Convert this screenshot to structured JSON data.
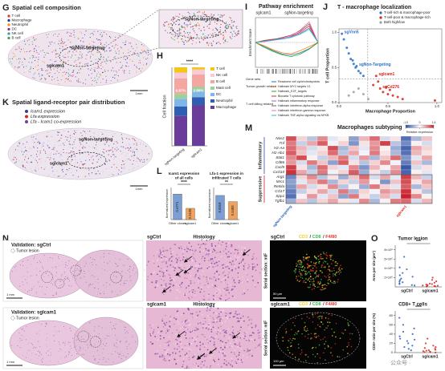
{
  "panels": {
    "letters": [
      "G",
      "H",
      "I",
      "J",
      "K",
      "L",
      "M",
      "N",
      "O"
    ],
    "G": {
      "title": "Spatial cell composition",
      "legend": [
        {
          "name": "T cell",
          "color": "#e53935"
        },
        {
          "name": "Macrophage",
          "color": "#283593"
        },
        {
          "name": "Neutrophil",
          "color": "#fb8c00"
        },
        {
          "name": "DC",
          "color": "#8e24aa"
        },
        {
          "name": "NK cell",
          "color": "#26a69a"
        },
        {
          "name": "B cell",
          "color": "#43a047"
        }
      ],
      "labels": [
        "sgNon-targeting",
        "sgIcam1"
      ],
      "inset_label": "sgNon-targeting",
      "scale_bar": "1mm"
    },
    "K": {
      "title": "Spatial ligand-receptor pair distribution",
      "legend": [
        {
          "name": "Icam1 expression",
          "color": "#2d3e9c"
        },
        {
          "name": "Lfa expression",
          "color": "#d7261e"
        },
        {
          "name": "Lfa - Icam1 co-expression",
          "color": "#7a3aa0"
        }
      ],
      "labels": [
        "sgNon-targeting",
        "sgIcam1"
      ],
      "scale_bar": "1mm"
    },
    "N": {
      "validation": [
        "Validation: sgCtrl",
        "Validation: sgIcam1"
      ],
      "lesion": [
        "Tumor lesion",
        "Tumor lesion"
      ],
      "scale_bars": [
        "1 mm",
        "1 mm"
      ],
      "histology": [
        {
          "group": "sgCtrl",
          "label": "Histology"
        },
        {
          "group": "sgIcam1",
          "label": "Histology"
        }
      ],
      "mif": [
        {
          "group": "sgCtrl",
          "label": "Serial section: mIF",
          "scale_bar": "50 µm"
        },
        {
          "group": "sgIcam1",
          "label": "Serial section: mIF",
          "scale_bar": "100 µm"
        }
      ],
      "channels": [
        {
          "name": "CD3",
          "color": "#f2d21b"
        },
        {
          "name": "CD8",
          "color": "#33c24d"
        },
        {
          "name": "F4/80",
          "color": "#e8322f"
        }
      ]
    },
    "watermark": "公众号 · "
  },
  "chart_data": [
    {
      "type": "stacked_bar",
      "ylabel": "Cell fraction",
      "categories": [
        "sgNon-targeting",
        "sgIcam1"
      ],
      "ylim": [
        0,
        1
      ],
      "annotation": "****",
      "series": [
        {
          "name": "Macrophage",
          "color": "#6a3d9a",
          "values": [
            0.38,
            0.52
          ]
        },
        {
          "name": "Neutrophil",
          "color": "#2f5fb3",
          "values": [
            0.12,
            0.1
          ]
        },
        {
          "name": "DC",
          "color": "#7fb8e6",
          "values": [
            0.1,
            0.08
          ]
        },
        {
          "name": "Mast cell",
          "color": "#9ad29a",
          "values": [
            0.06,
            0.05
          ]
        },
        {
          "name": "B cell",
          "color": "#f4a6a0",
          "values": [
            0.2,
            0.16
          ]
        },
        {
          "name": "NK cell",
          "color": "#f7c9da",
          "values": [
            0.0713,
            0.0614
          ]
        },
        {
          "name": "T cell",
          "color": "#f5c518",
          "values": [
            0.0687,
            0.0286
          ],
          "value_labels": [
            "6.87%",
            "2.86%"
          ]
        }
      ]
    },
    {
      "type": "line",
      "title": "Pathway enrichment",
      "subtitles": [
        "sgIcam1",
        "sgNon-targeting"
      ],
      "ylabel": "Enrichment Score",
      "groups": [
        "Gene sets",
        "Tumor growth related",
        "T cell killing related"
      ],
      "x": [
        0,
        1,
        2,
        3,
        4,
        5,
        6,
        7
      ],
      "xlim": [
        0,
        7
      ],
      "ylim": [
        -0.6,
        0.6
      ],
      "series": [
        {
          "name": "Reactome cell cycle/checkpoints",
          "color": "#1f77b4",
          "values": [
            0,
            -0.1,
            -0.2,
            -0.28,
            -0.3,
            -0.25,
            -0.15,
            0
          ]
        },
        {
          "name": "Hallmark MYC targets V1",
          "color": "#ff7f0e",
          "values": [
            0,
            -0.08,
            -0.18,
            -0.25,
            -0.27,
            -0.2,
            -0.1,
            0
          ]
        },
        {
          "name": "Hallmark_E2F_targets",
          "color": "#2ca02c",
          "values": [
            0,
            -0.12,
            -0.22,
            -0.3,
            -0.34,
            -0.28,
            -0.16,
            0
          ]
        },
        {
          "name": "Biocarta T cytotoxic pathway",
          "color": "#d62728",
          "values": [
            0,
            0.05,
            0.08,
            0.1,
            0.15,
            0.25,
            0.4,
            0
          ]
        },
        {
          "name": "Hallmark inflammatory response",
          "color": "#9467bd",
          "values": [
            0,
            0.03,
            0.06,
            0.1,
            0.14,
            0.22,
            0.35,
            0
          ]
        },
        {
          "name": "Hallmark interferon-alpha response",
          "color": "#8c564b",
          "values": [
            0,
            0.04,
            0.07,
            0.12,
            0.18,
            0.28,
            0.45,
            0
          ]
        },
        {
          "name": "Hallmark interferon-gamma response",
          "color": "#e377c2",
          "values": [
            0,
            0.02,
            0.05,
            0.09,
            0.16,
            0.3,
            0.5,
            0
          ]
        },
        {
          "name": "Hallmark TNF-alpha signaling via NFKB",
          "color": "#17becf",
          "values": [
            0,
            0.03,
            0.06,
            0.08,
            0.12,
            0.2,
            0.32,
            0
          ]
        }
      ]
    },
    {
      "type": "scatter",
      "title": "T - macrophage localization",
      "xlabel": "Macrophage Proportion",
      "ylabel": "T cell Proportion",
      "xlim": [
        0,
        1.05
      ],
      "ylim": [
        0,
        1.05
      ],
      "xticks": [
        {
          "value": 0,
          "label": "0.0"
        },
        0.5,
        {
          "value": 1,
          "label": "1.0"
        }
      ],
      "yticks": [
        {
          "value": 0,
          "label": "0.0"
        },
        0.5,
        {
          "value": 1,
          "label": "1.0"
        }
      ],
      "series": [
        {
          "name": "T-cell-rich & macrophage-poor",
          "color": "#2a6fc9",
          "x": [
            0.05,
            0.1,
            0.12,
            0.15,
            0.18,
            0.2,
            0.08,
            0.22,
            0.25,
            0.14,
            0.03,
            0.17
          ],
          "y": [
            0.9,
            0.7,
            0.62,
            0.55,
            0.52,
            0.45,
            0.78,
            0.42,
            0.38,
            0.6,
            0.98,
            0.5
          ],
          "labels": [
            null,
            null,
            null,
            null,
            "sgNon-Targeting",
            null,
            null,
            null,
            null,
            null,
            "sgVnn5",
            null
          ]
        },
        {
          "name": "T-cell-poor & macrophage-rich",
          "color": "#d7261e",
          "x": [
            0.35,
            0.38,
            0.42,
            0.45,
            0.5,
            0.55,
            0.6,
            0.4,
            0.48,
            0.65,
            0.52,
            0.98
          ],
          "y": [
            0.25,
            0.38,
            0.2,
            0.15,
            0.12,
            0.1,
            0.08,
            0.3,
            0.22,
            0.05,
            0.18,
            0.03
          ],
          "labels": [
            null,
            "sgIcam1",
            "sgCd276",
            null,
            null,
            null,
            null,
            null,
            null,
            null,
            null,
            null
          ]
        },
        {
          "name": "Both high/low",
          "color": "#9e9e9e",
          "x": [
            0.1,
            0.15,
            0.2,
            0.25,
            0.3
          ],
          "y": [
            0.1,
            0.15,
            0.2,
            0.12,
            0.05
          ],
          "labels": [
            null,
            null,
            null,
            null,
            null
          ]
        }
      ]
    },
    {
      "type": "bar",
      "title_lines": [
        "Icam1 expression",
        "of all cells"
      ],
      "ylabel": "Normalized expression",
      "categories": [
        "Other clones",
        "sgIcam1"
      ],
      "values": [
        0.4771,
        0.2105
      ],
      "colors": [
        "#7b9fd4",
        "#f0a35e"
      ],
      "ylim": [
        0,
        0.6
      ],
      "annotation": "****"
    },
    {
      "type": "bar",
      "title_lines": [
        "Lfa-1 expression in",
        "infiltrated T cells"
      ],
      "ylabel": "Normalized expression",
      "categories": [
        "Other clones",
        "sgIcam1"
      ],
      "values": [
        0.6019,
        0.4483
      ],
      "colors": [
        "#7b9fd4",
        "#f0a35e"
      ],
      "ylim": [
        0,
        0.8
      ],
      "annotation": "**"
    },
    {
      "type": "heatmap",
      "title": "Macrophages subtyping",
      "colorbar_label": "Relative expression",
      "clim": [
        -1.5,
        1.5
      ],
      "cticks": [
        -1.5,
        0,
        1.5
      ],
      "columns": [
        "sgNon-targeting",
        null,
        null,
        null,
        null,
        null,
        null,
        null,
        null,
        null,
        null,
        "sgIcam1",
        null,
        null
      ],
      "groups": [
        {
          "name": "Inflammatory",
          "rows": [
            "Nos2",
            "Tnf",
            "H2-Aa",
            "H2-Ab1",
            "Stat1",
            "Cd86",
            "Cxcl9",
            "Cxcl10"
          ],
          "values": [
            [
              1.2,
              0.3,
              -0.5,
              0.8,
              -0.2,
              0.1,
              -0.8,
              0.5,
              1.0,
              -0.3,
              0.2,
              -1.2,
              -0.6,
              0.4
            ],
            [
              0.9,
              -0.4,
              0.6,
              1.1,
              -0.1,
              0.3,
              -0.9,
              0.2,
              0.7,
              1.3,
              -0.5,
              -1.0,
              0.1,
              -0.3
            ],
            [
              1.0,
              0.5,
              -0.3,
              0.2,
              1.2,
              -0.6,
              0.4,
              -0.2,
              0.8,
              0.1,
              -0.7,
              -1.3,
              0.6,
              0.3
            ],
            [
              1.1,
              0.4,
              -0.2,
              0.3,
              1.0,
              -0.5,
              0.6,
              -0.1,
              0.9,
              0.2,
              -0.6,
              -1.2,
              0.5,
              0.2
            ],
            [
              0.8,
              1.2,
              0.1,
              -0.4,
              0.5,
              0.9,
              -0.3,
              0.7,
              -0.6,
              0.4,
              1.0,
              -0.9,
              -0.2,
              0.6
            ],
            [
              0.7,
              -0.3,
              0.9,
              0.4,
              -0.8,
              1.1,
              0.2,
              -0.5,
              0.3,
              0.8,
              -0.1,
              -1.1,
              0.4,
              -0.6
            ],
            [
              1.3,
              0.2,
              -0.6,
              1.0,
              0.3,
              -0.2,
              0.8,
              -0.9,
              0.5,
              0.1,
              0.6,
              -1.4,
              -0.3,
              0.2
            ],
            [
              1.4,
              0.6,
              -0.4,
              0.9,
              -0.1,
              0.3,
              1.1,
              -0.7,
              0.2,
              -0.4,
              0.8,
              -1.3,
              0.1,
              -0.2
            ]
          ]
        },
        {
          "name": "Suppressive",
          "rows": [
            "Arg1",
            "Mrc1",
            "Retnla",
            "Ccl17",
            "Spp1",
            "Tgfb1"
          ],
          "values": [
            [
              -1.0,
              0.3,
              0.8,
              -0.5,
              0.2,
              -0.7,
              0.4,
              1.0,
              -0.3,
              0.6,
              -0.2,
              1.3,
              0.5,
              -0.4
            ],
            [
              -0.8,
              -0.2,
              0.5,
              0.9,
              -0.6,
              0.3,
              -0.4,
              0.7,
              0.1,
              -0.9,
              0.4,
              1.2,
              0.2,
              0.6
            ],
            [
              -0.9,
              0.6,
              -0.3,
              0.2,
              0.8,
              -0.5,
              0.1,
              -0.7,
              0.9,
              0.3,
              -0.2,
              1.1,
              -0.6,
              0.4
            ],
            [
              -1.1,
              -0.4,
              0.2,
              0.6,
              -0.3,
              0.9,
              -0.6,
              0.3,
              -0.1,
              0.7,
              0.5,
              1.4,
              0.2,
              -0.5
            ],
            [
              -1.2,
              0.1,
              0.7,
              -0.2,
              0.4,
              -0.8,
              0.9,
              0.2,
              -0.4,
              0.5,
              -0.3,
              1.5,
              0.8,
              0.1
            ],
            [
              -0.7,
              0.4,
              -0.5,
              0.3,
              0.6,
              0.2,
              -0.2,
              0.8,
              -0.6,
              0.1,
              0.9,
              1.0,
              -0.3,
              0.5
            ]
          ]
        }
      ]
    },
    {
      "type": "strip",
      "title": "Tumor lesion",
      "ylabel": "Area per site (µm²)",
      "ylim": [
        0,
        900000
      ],
      "annotation": "***",
      "yticks": [
        {
          "value": 200000,
          "label": "2×10⁵"
        },
        {
          "value": 400000,
          "label": "4×10⁵"
        },
        {
          "value": 600000,
          "label": "6×10⁵"
        },
        {
          "value": 800000,
          "label": "8×10⁵"
        }
      ],
      "groups": [
        {
          "name": "sgCtrl",
          "color": "#2b5fb3",
          "values": [
            650000,
            420000,
            380000,
            300000,
            250000,
            220000,
            180000,
            150000,
            120000,
            100000,
            80000,
            60000,
            40000,
            30000
          ]
        },
        {
          "name": "sgIcam1",
          "color": "#d7261e",
          "values": [
            200000,
            150000,
            120000,
            90000,
            70000,
            60000,
            50000,
            40000,
            30000,
            25000,
            20000,
            15000,
            10000,
            8000
          ]
        }
      ]
    },
    {
      "type": "strip",
      "title": "CD8+ T cells",
      "ylabel": "CD8+ ratio per site (%)",
      "ylim": [
        0,
        90
      ],
      "annotation": "****",
      "yticks": [
        0,
        20,
        40,
        60,
        80
      ],
      "groups": [
        {
          "name": "sgCtrl",
          "color": "#2b5fb3",
          "values": [
            75,
            60,
            52,
            45,
            40,
            35,
            30,
            28,
            25,
            20,
            15,
            12,
            8,
            5
          ]
        },
        {
          "name": "sgIcam1",
          "color": "#d7261e",
          "values": [
            30,
            20,
            15,
            12,
            10,
            8,
            6,
            5,
            4,
            3,
            2,
            1,
            1,
            0
          ]
        }
      ]
    }
  ]
}
